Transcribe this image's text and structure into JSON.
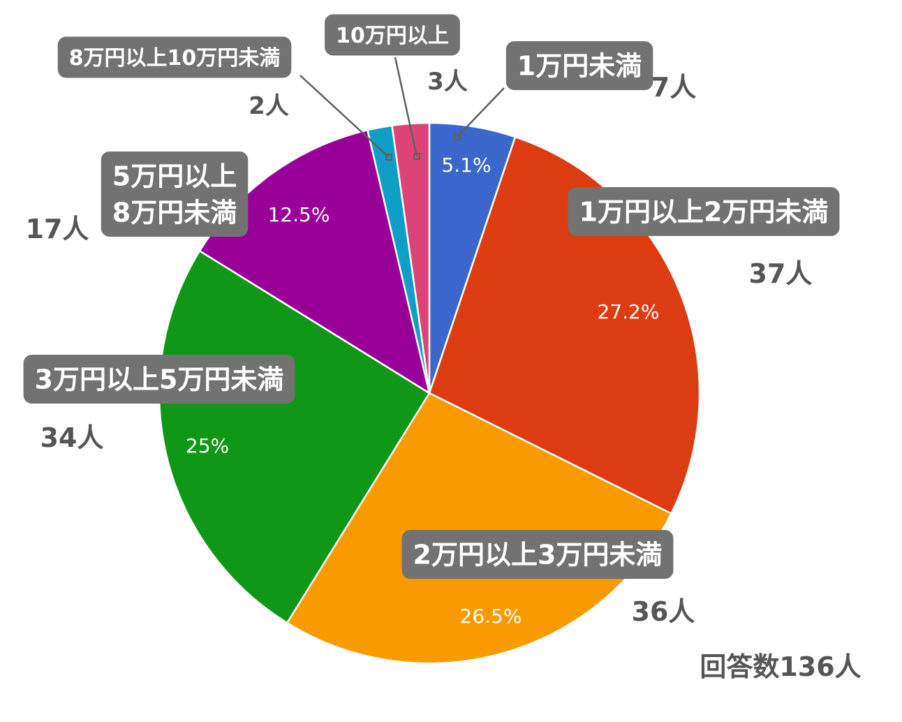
{
  "chart_data": {
    "type": "pie",
    "total_label": "回答数136人",
    "slices": [
      {
        "label": "1万円未満",
        "count": 7,
        "count_label": "7人",
        "percent": 5.1,
        "percent_label": "5.1%",
        "color": "#3b67cd"
      },
      {
        "label": "1万円以上2万円未満",
        "count": 37,
        "count_label": "37人",
        "percent": 27.2,
        "percent_label": "27.2%",
        "color": "#dc3c12"
      },
      {
        "label": "2万円以上3万円未満",
        "count": 36,
        "count_label": "36人",
        "percent": 26.5,
        "percent_label": "26.5%",
        "color": "#f89a00"
      },
      {
        "label": "3万円以上5万円未満",
        "count": 34,
        "count_label": "34人",
        "percent": 25,
        "percent_label": "25%",
        "color": "#119717"
      },
      {
        "label": "5万円以上\n8万円未満",
        "count": 17,
        "count_label": "17人",
        "percent": 12.5,
        "percent_label": "12.5%",
        "color": "#980098"
      },
      {
        "label": "8万円以上10万円未満",
        "count": 2,
        "count_label": "2人",
        "percent": 1.5,
        "percent_label": "",
        "color": "#0f9ec6"
      },
      {
        "label": "10万円以上",
        "count": 3,
        "count_label": "3人",
        "percent": 2.2,
        "percent_label": "",
        "color": "#dc4477"
      }
    ]
  }
}
